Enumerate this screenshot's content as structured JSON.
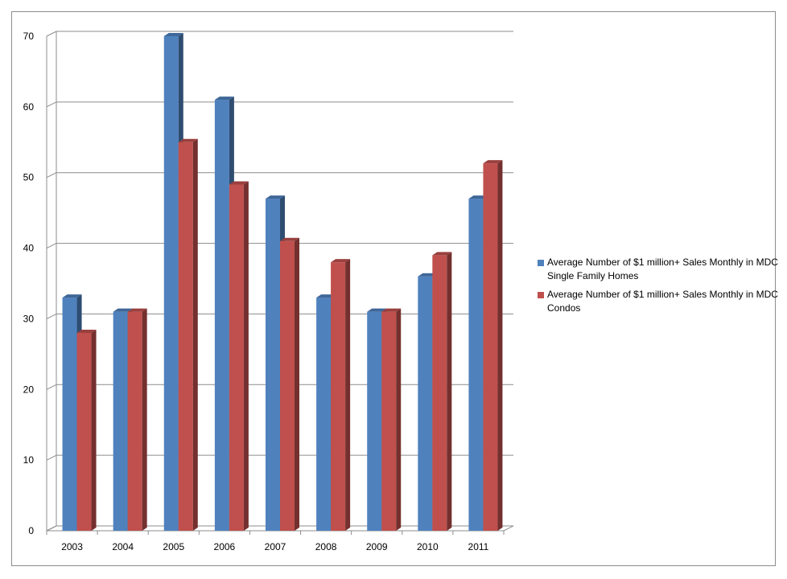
{
  "chart_data": {
    "type": "bar",
    "title": "",
    "xlabel": "",
    "ylabel": "",
    "categories": [
      "2003",
      "2004",
      "2005",
      "2006",
      "2007",
      "2008",
      "2009",
      "2010",
      "2011"
    ],
    "series": [
      {
        "name": "Average Number of $1 million+ Sales Monthly in MDC Single Family Homes",
        "color": "#4f81bd",
        "values": [
          33,
          31,
          70,
          61,
          47,
          33,
          31,
          36,
          47
        ]
      },
      {
        "name": "Average Number of $1 million+ Sales Monthly in MDC Condos",
        "color": "#c0504d",
        "values": [
          28,
          31,
          55,
          49,
          41,
          38,
          31,
          39,
          52
        ]
      }
    ],
    "ylim": [
      0,
      70
    ],
    "yticks": [
      "0",
      "10",
      "20",
      "30",
      "40",
      "50",
      "60",
      "70"
    ],
    "grid": true,
    "legend_position": "right",
    "style": "3d-clustered-column"
  }
}
